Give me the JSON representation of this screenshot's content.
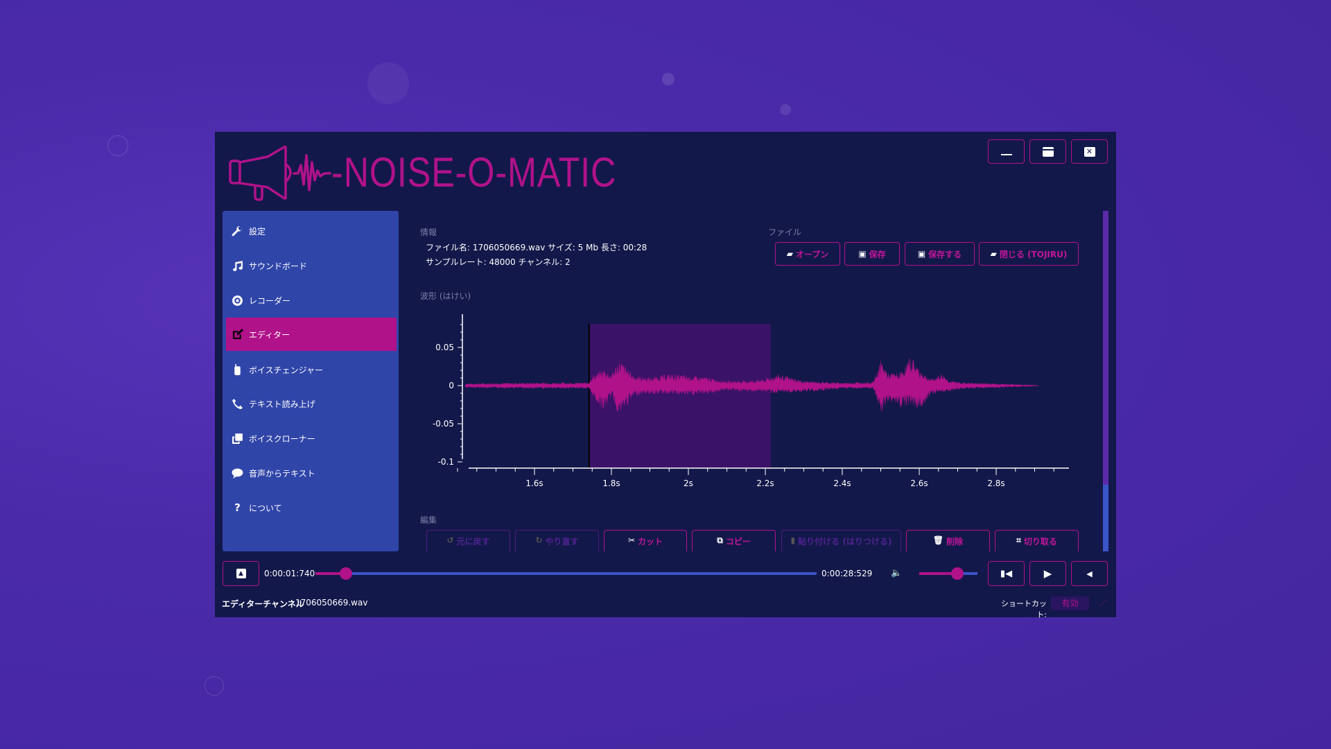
{
  "app": {
    "title": "-NOISE-O-MATIC"
  },
  "window_controls": [
    {
      "name": "minimize"
    },
    {
      "name": "maximize"
    },
    {
      "name": "close"
    }
  ],
  "sidebar": {
    "items": [
      {
        "label": "設定",
        "icon": "wrench-icon"
      },
      {
        "label": "サウンドボード",
        "icon": "music-icon"
      },
      {
        "label": "レコーダー",
        "icon": "record-icon"
      },
      {
        "label": "エディター",
        "icon": "edit-icon",
        "active": true
      },
      {
        "label": "ボイスチェンジャー",
        "icon": "walkie-talkie-icon"
      },
      {
        "label": "テキスト読み上げ",
        "icon": "phone-icon"
      },
      {
        "label": "ボイスクローナー",
        "icon": "clone-icon"
      },
      {
        "label": "音声からテキスト",
        "icon": "comment-icon"
      },
      {
        "label": "について",
        "icon": "question-icon"
      }
    ]
  },
  "info": {
    "heading": "情報",
    "line1": "ファイル名: 1706050669.wav サイズ: 5 Mb 長さ: 00:28",
    "line2": "サンプルレート: 48000 チャンネル: 2"
  },
  "file": {
    "heading": "ファイル",
    "buttons": [
      "オープン",
      "保存",
      "保存する",
      "閉じる (TOJIRU)"
    ]
  },
  "waveform": {
    "heading": "波形 (はけい)"
  },
  "edit": {
    "heading": "編集",
    "buttons": [
      {
        "label": "元に戻す",
        "enabled": false
      },
      {
        "label": "やり直す",
        "enabled": false
      },
      {
        "label": "カット",
        "enabled": true
      },
      {
        "label": "コピー",
        "enabled": true
      },
      {
        "label": "貼り付ける (はりつける)",
        "enabled": false
      },
      {
        "label": "削除",
        "enabled": true
      },
      {
        "label": "切り取る",
        "enabled": true
      }
    ]
  },
  "player": {
    "current_time": "0:00:01:740",
    "total_time": "0:00:28:529",
    "progress_percent": 6.1,
    "volume_percent": 65
  },
  "status": {
    "channel_label": "エディターチャンネル",
    "file": "1706050669.wav",
    "shortcut_label": "ショートカット:",
    "shortcut_value": "有効"
  },
  "colors": {
    "accent": "#b0128a",
    "window": "#13184a",
    "sidebar": "#3045a8",
    "selection": "#3a1268",
    "background": "#4a2aa8"
  },
  "chart_data": {
    "type": "area",
    "title": "波形 (はけい)",
    "xlabel": "",
    "ylabel": "",
    "xlim": [
      1.375,
      2.995
    ],
    "ylim": [
      -0.1,
      0.09
    ],
    "x_ticks": [
      1.6,
      1.8,
      2.0,
      2.2,
      2.4,
      2.6,
      2.8
    ],
    "x_tick_labels": [
      "1.6s",
      "1.8s",
      "2s",
      "2.2s",
      "2.4s",
      "2.6s",
      "2.8s"
    ],
    "y_ticks": [
      0.05,
      0,
      -0.05,
      -0.1
    ],
    "y_tick_labels": [
      "0.05",
      "0",
      "-0.05",
      "-0.1"
    ],
    "selection": [
      1.742,
      2.214
    ],
    "envelope": {
      "t": [
        1.42,
        1.6,
        1.74,
        1.75,
        1.78,
        1.8,
        1.82,
        1.86,
        1.9,
        1.95,
        2.0,
        2.05,
        2.1,
        2.15,
        2.2,
        2.23,
        2.3,
        2.4,
        2.48,
        2.5,
        2.52,
        2.55,
        2.58,
        2.6,
        2.63,
        2.66,
        2.68,
        2.72,
        2.8,
        2.86,
        2.91
      ],
      "max": [
        0.003,
        0.004,
        0.004,
        0.012,
        0.02,
        0.014,
        0.03,
        0.012,
        0.01,
        0.014,
        0.012,
        0.01,
        0.006,
        0.006,
        0.008,
        0.014,
        0.006,
        0.004,
        0.005,
        0.03,
        0.015,
        0.015,
        0.035,
        0.02,
        0.008,
        0.015,
        0.006,
        0.004,
        0.003,
        0.002,
        0.001
      ],
      "min": [
        -0.003,
        -0.004,
        -0.004,
        -0.012,
        -0.03,
        -0.012,
        -0.035,
        -0.012,
        -0.01,
        -0.01,
        -0.012,
        -0.01,
        -0.006,
        -0.008,
        -0.008,
        -0.01,
        -0.008,
        -0.004,
        -0.004,
        -0.035,
        -0.018,
        -0.025,
        -0.022,
        -0.03,
        -0.01,
        -0.008,
        -0.007,
        -0.004,
        -0.003,
        -0.002,
        -0.001
      ]
    }
  }
}
